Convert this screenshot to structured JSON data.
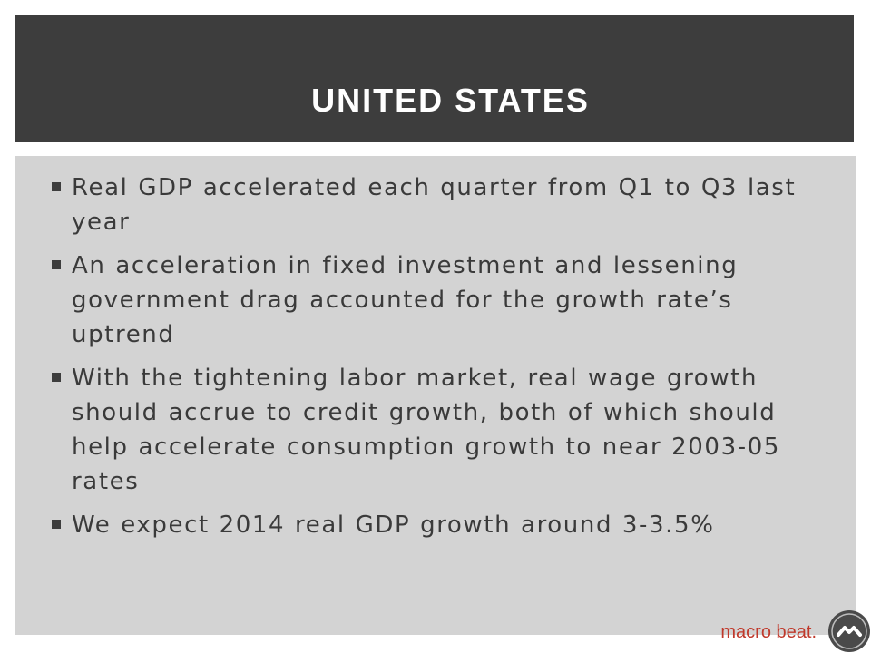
{
  "slide": {
    "title": "UNITED STATES",
    "bullets": [
      "Real GDP accelerated each quarter from Q1 to Q3 last year",
      "An acceleration in fixed investment and lessening government drag accounted for the growth rate’s uptrend",
      "With the tightening labor market, real wage growth should accrue to credit growth, both of which should help accelerate consumption growth to near 2003-05 rates",
      "We expect 2014 real GDP growth around 3-3.5%"
    ]
  },
  "footer": {
    "brand_text": "macro beat.",
    "logo_icon": "macro-beat-logo-icon"
  },
  "colors": {
    "header_bg": "#3d3d3d",
    "body_bg": "#d3d3d3",
    "text": "#3a3a3a",
    "brand": "#c0392b"
  }
}
